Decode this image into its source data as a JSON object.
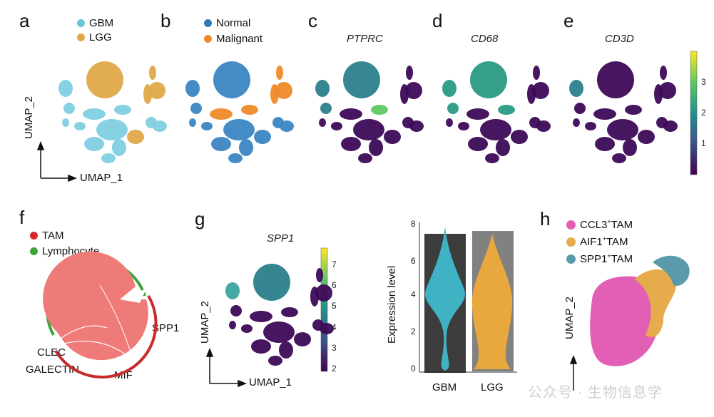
{
  "panels": {
    "a": {
      "letter": "a",
      "legend": [
        "GBM",
        "LGG"
      ],
      "colors": [
        "#6cc5d8",
        "#e0a84a"
      ],
      "xaxis": "UMAP_1",
      "yaxis": "UMAP_2"
    },
    "b": {
      "letter": "b",
      "legend": [
        "Normal",
        "Malignant"
      ],
      "colors": [
        "#2f7ab7",
        "#ef8a2a"
      ]
    },
    "c": {
      "letter": "c",
      "gene": "PTPRC"
    },
    "d": {
      "letter": "d",
      "gene": "CD68"
    },
    "e": {
      "letter": "e",
      "gene": "CD3D",
      "colorbar_ticks": [
        "3",
        "2",
        "1"
      ]
    },
    "f": {
      "letter": "f",
      "legend": [
        "TAM",
        "Lymphocyte"
      ],
      "colors": [
        "#d62728",
        "#3aa63a"
      ],
      "labels": {
        "spp1": "SPP1",
        "clec": "CLEC",
        "galectin": "GALECTIN",
        "mif": "MIF"
      }
    },
    "g": {
      "letter": "g",
      "gene": "SPP1",
      "colorbar_ticks": [
        "7",
        "6",
        "5",
        "4",
        "3",
        "2"
      ],
      "xaxis": "UMAP_1",
      "yaxis": "UMAP_2"
    },
    "violin": {
      "ylabel": "Expression level",
      "yticks": [
        "8",
        "6",
        "4",
        "2",
        "0"
      ],
      "groups": [
        "GBM",
        "LGG"
      ],
      "colors": [
        "#3fb3c4",
        "#e8a83d"
      ]
    },
    "h": {
      "letter": "h",
      "legend_main": [
        "CCL3",
        "AIF1",
        "SPP1"
      ],
      "legend_sup": "+",
      "legend_suffix": "TAM",
      "colors": [
        "#e35fb5",
        "#e6ac4c",
        "#5a9bab"
      ],
      "yaxis": "UMAP_2"
    }
  },
  "watermark": "公众号 · 生物信息学"
}
